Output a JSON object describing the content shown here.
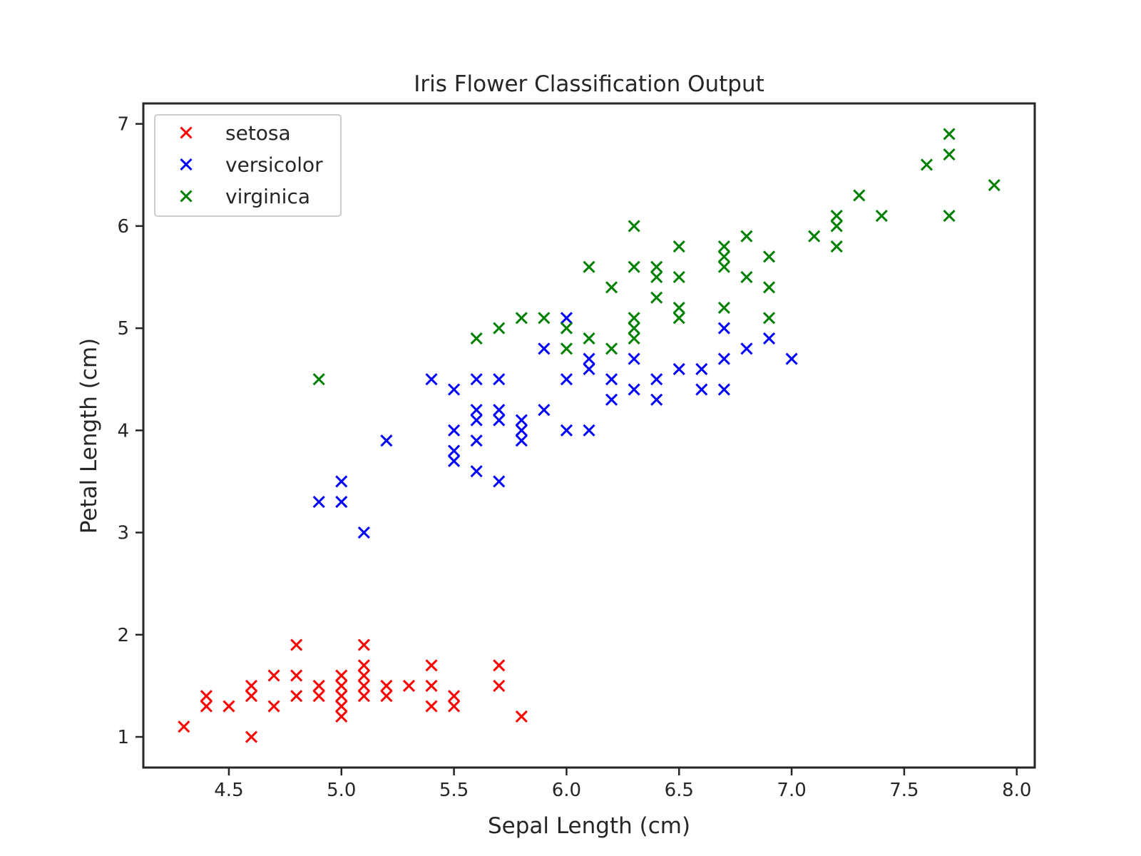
{
  "chart_data": {
    "type": "scatter",
    "title": "Iris Flower Classification Output",
    "xlabel": "Sepal Length (cm)",
    "ylabel": "Petal Length (cm)",
    "xlim": [
      4.12,
      8.08
    ],
    "ylim": [
      0.7,
      7.2
    ],
    "xticks": [
      4.5,
      5.0,
      5.5,
      6.0,
      6.5,
      7.0,
      7.5,
      8.0
    ],
    "xtick_labels": [
      "4.5",
      "5.0",
      "5.5",
      "6.0",
      "6.5",
      "7.0",
      "7.5",
      "8.0"
    ],
    "yticks": [
      1,
      2,
      3,
      4,
      5,
      6,
      7
    ],
    "ytick_labels": [
      "1",
      "2",
      "3",
      "4",
      "5",
      "6",
      "7"
    ],
    "grid": false,
    "legend_position": "top-left",
    "marker": "x",
    "series": [
      {
        "name": "setosa",
        "color": "#ff0000",
        "points": [
          [
            4.3,
            1.1
          ],
          [
            4.4,
            1.3
          ],
          [
            4.4,
            1.4
          ],
          [
            4.5,
            1.3
          ],
          [
            4.6,
            1.0
          ],
          [
            4.6,
            1.4
          ],
          [
            4.6,
            1.5
          ],
          [
            4.7,
            1.3
          ],
          [
            4.7,
            1.6
          ],
          [
            4.8,
            1.4
          ],
          [
            4.8,
            1.6
          ],
          [
            4.8,
            1.9
          ],
          [
            4.9,
            1.4
          ],
          [
            4.9,
            1.5
          ],
          [
            5.0,
            1.2
          ],
          [
            5.0,
            1.3
          ],
          [
            5.0,
            1.4
          ],
          [
            5.0,
            1.5
          ],
          [
            5.0,
            1.6
          ],
          [
            5.1,
            1.4
          ],
          [
            5.1,
            1.5
          ],
          [
            5.1,
            1.6
          ],
          [
            5.1,
            1.7
          ],
          [
            5.1,
            1.9
          ],
          [
            5.2,
            1.4
          ],
          [
            5.2,
            1.5
          ],
          [
            5.3,
            1.5
          ],
          [
            5.4,
            1.3
          ],
          [
            5.4,
            1.5
          ],
          [
            5.4,
            1.7
          ],
          [
            5.5,
            1.3
          ],
          [
            5.5,
            1.4
          ],
          [
            5.7,
            1.5
          ],
          [
            5.7,
            1.7
          ],
          [
            5.8,
            1.2
          ]
        ]
      },
      {
        "name": "versicolor",
        "color": "#0000ff",
        "points": [
          [
            4.9,
            3.3
          ],
          [
            5.0,
            3.3
          ],
          [
            5.0,
            3.5
          ],
          [
            5.1,
            3.0
          ],
          [
            5.2,
            3.9
          ],
          [
            5.4,
            4.5
          ],
          [
            5.5,
            3.7
          ],
          [
            5.5,
            3.8
          ],
          [
            5.5,
            4.0
          ],
          [
            5.5,
            4.4
          ],
          [
            5.6,
            3.6
          ],
          [
            5.6,
            3.9
          ],
          [
            5.6,
            4.1
          ],
          [
            5.6,
            4.2
          ],
          [
            5.6,
            4.5
          ],
          [
            5.7,
            3.5
          ],
          [
            5.7,
            4.1
          ],
          [
            5.7,
            4.2
          ],
          [
            5.7,
            4.5
          ],
          [
            5.8,
            3.9
          ],
          [
            5.8,
            4.0
          ],
          [
            5.8,
            4.1
          ],
          [
            5.9,
            4.2
          ],
          [
            5.9,
            4.8
          ],
          [
            6.0,
            4.0
          ],
          [
            6.0,
            4.5
          ],
          [
            6.0,
            5.1
          ],
          [
            6.1,
            4.0
          ],
          [
            6.1,
            4.6
          ],
          [
            6.1,
            4.7
          ],
          [
            6.2,
            4.3
          ],
          [
            6.2,
            4.5
          ],
          [
            6.3,
            4.4
          ],
          [
            6.3,
            4.7
          ],
          [
            6.4,
            4.3
          ],
          [
            6.4,
            4.5
          ],
          [
            6.5,
            4.6
          ],
          [
            6.6,
            4.4
          ],
          [
            6.6,
            4.6
          ],
          [
            6.7,
            4.4
          ],
          [
            6.7,
            4.7
          ],
          [
            6.7,
            5.0
          ],
          [
            6.8,
            4.8
          ],
          [
            6.9,
            4.9
          ],
          [
            7.0,
            4.7
          ]
        ]
      },
      {
        "name": "virginica",
        "color": "#008000",
        "points": [
          [
            4.9,
            4.5
          ],
          [
            5.6,
            4.9
          ],
          [
            5.7,
            5.0
          ],
          [
            5.8,
            5.1
          ],
          [
            5.9,
            5.1
          ],
          [
            6.0,
            4.8
          ],
          [
            6.0,
            5.0
          ],
          [
            6.1,
            4.9
          ],
          [
            6.1,
            5.6
          ],
          [
            6.2,
            4.8
          ],
          [
            6.2,
            5.4
          ],
          [
            6.3,
            4.9
          ],
          [
            6.3,
            5.0
          ],
          [
            6.3,
            5.1
          ],
          [
            6.3,
            5.6
          ],
          [
            6.3,
            6.0
          ],
          [
            6.4,
            5.3
          ],
          [
            6.4,
            5.5
          ],
          [
            6.4,
            5.6
          ],
          [
            6.5,
            5.1
          ],
          [
            6.5,
            5.2
          ],
          [
            6.5,
            5.5
          ],
          [
            6.5,
            5.8
          ],
          [
            6.7,
            5.2
          ],
          [
            6.7,
            5.6
          ],
          [
            6.7,
            5.7
          ],
          [
            6.7,
            5.8
          ],
          [
            6.8,
            5.5
          ],
          [
            6.8,
            5.9
          ],
          [
            6.9,
            5.1
          ],
          [
            6.9,
            5.4
          ],
          [
            6.9,
            5.7
          ],
          [
            7.1,
            5.9
          ],
          [
            7.2,
            5.8
          ],
          [
            7.2,
            6.0
          ],
          [
            7.2,
            6.1
          ],
          [
            7.3,
            6.3
          ],
          [
            7.4,
            6.1
          ],
          [
            7.6,
            6.6
          ],
          [
            7.7,
            6.1
          ],
          [
            7.7,
            6.7
          ],
          [
            7.7,
            6.9
          ],
          [
            7.9,
            6.4
          ]
        ]
      }
    ]
  }
}
